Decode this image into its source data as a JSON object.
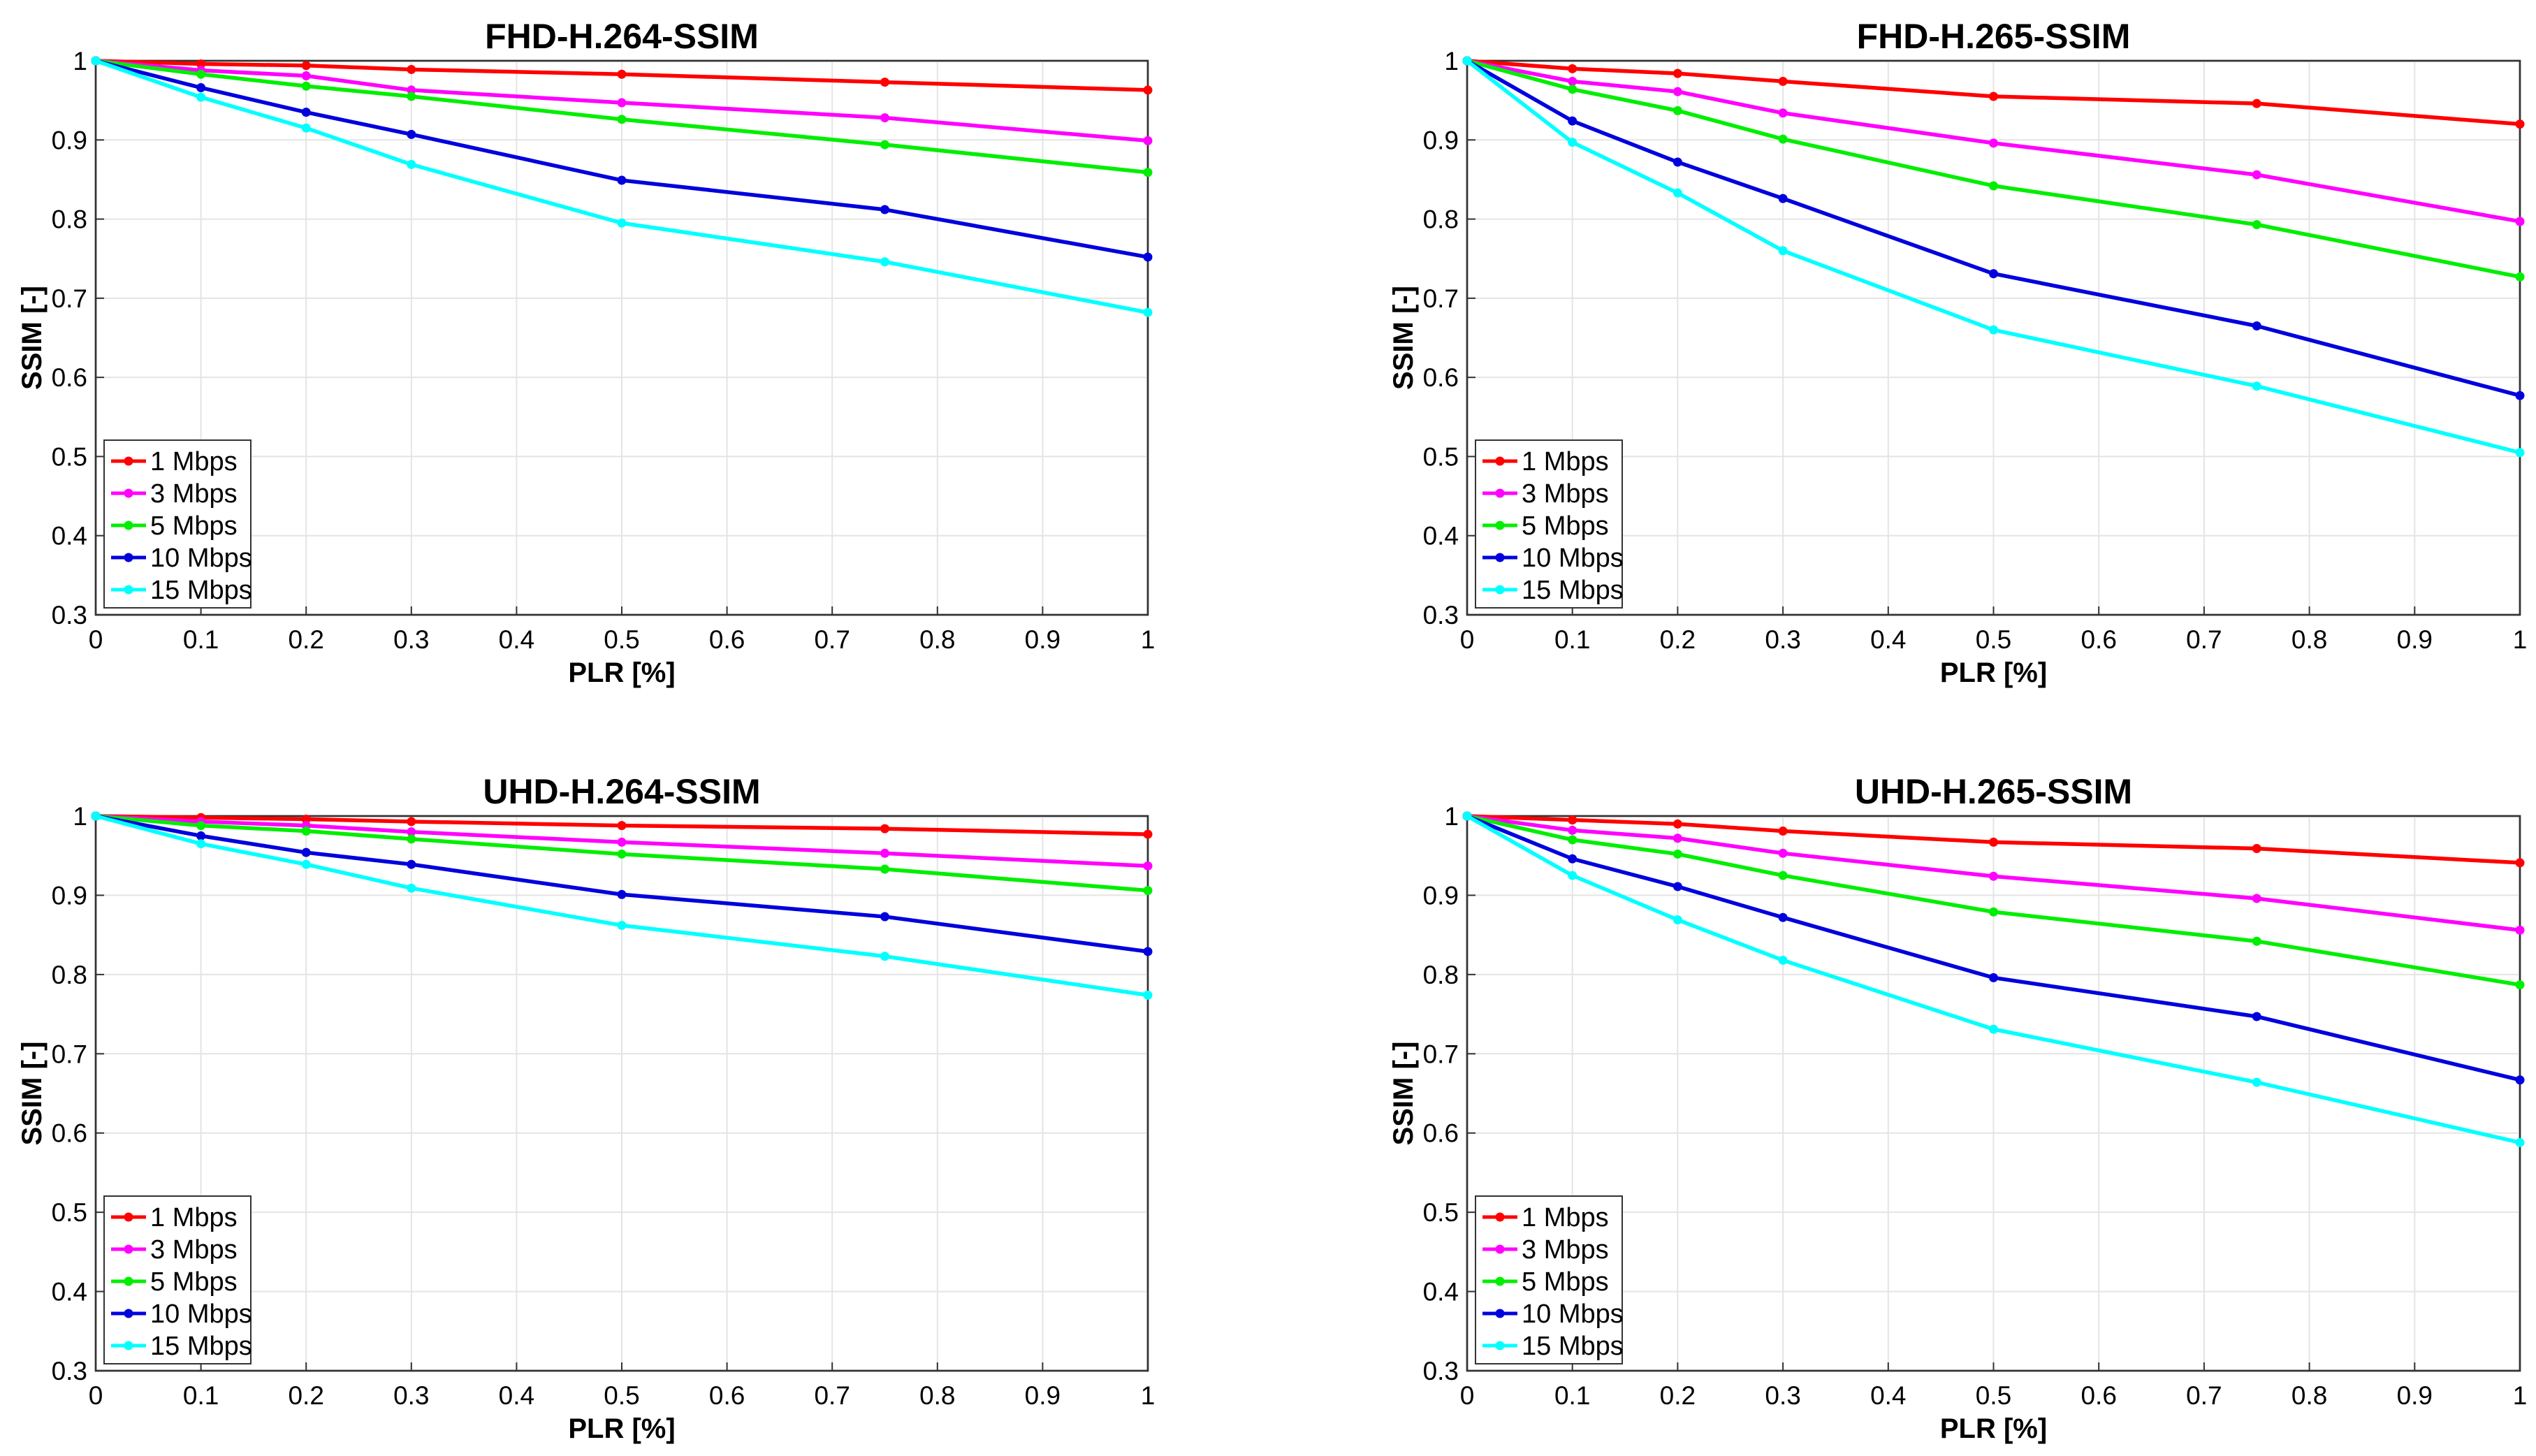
{
  "chart_data": [
    {
      "type": "line",
      "title": "FHD-H.264-SSIM",
      "xlabel": "PLR [%]",
      "ylabel": "SSIM [-]",
      "xlim": [
        0,
        1
      ],
      "ylim": [
        0.3,
        1
      ],
      "xticks": [
        "0",
        "0.1",
        "0.2",
        "0.3",
        "0.4",
        "0.5",
        "0.6",
        "0.7",
        "0.8",
        "0.9",
        "1"
      ],
      "yticks": [
        "0.3",
        "0.4",
        "0.5",
        "0.6",
        "0.7",
        "0.8",
        "0.9",
        "1"
      ],
      "grid": true,
      "legend_position": "bottom-left",
      "x": [
        0,
        0.1,
        0.2,
        0.3,
        0.5,
        0.75,
        1
      ],
      "series": [
        {
          "name": "1 Mbps",
          "color": "#ff0000",
          "values": [
            1,
            0.996,
            0.994,
            0.989,
            0.983,
            0.973,
            0.963
          ]
        },
        {
          "name": "3 Mbps",
          "color": "#ff00ff",
          "values": [
            1,
            0.988,
            0.981,
            0.963,
            0.947,
            0.928,
            0.899
          ]
        },
        {
          "name": "5 Mbps",
          "color": "#00ee00",
          "values": [
            1,
            0.983,
            0.968,
            0.955,
            0.926,
            0.894,
            0.859
          ]
        },
        {
          "name": "10 Mbps",
          "color": "#0000dd",
          "values": [
            1,
            0.966,
            0.935,
            0.907,
            0.849,
            0.812,
            0.752
          ]
        },
        {
          "name": "15 Mbps",
          "color": "#00ffff",
          "values": [
            1,
            0.954,
            0.915,
            0.869,
            0.795,
            0.746,
            0.682
          ]
        }
      ]
    },
    {
      "type": "line",
      "title": "FHD-H.265-SSIM",
      "xlabel": "PLR [%]",
      "ylabel": "SSIM [-]",
      "xlim": [
        0,
        1
      ],
      "ylim": [
        0.3,
        1
      ],
      "xticks": [
        "0",
        "0.1",
        "0.2",
        "0.3",
        "0.4",
        "0.5",
        "0.6",
        "0.7",
        "0.8",
        "0.9",
        "1"
      ],
      "yticks": [
        "0.3",
        "0.4",
        "0.5",
        "0.6",
        "0.7",
        "0.8",
        "0.9",
        "1"
      ],
      "grid": true,
      "legend_position": "bottom-left",
      "x": [
        0,
        0.1,
        0.2,
        0.3,
        0.5,
        0.75,
        1
      ],
      "series": [
        {
          "name": "1 Mbps",
          "color": "#ff0000",
          "values": [
            1,
            0.99,
            0.984,
            0.974,
            0.955,
            0.946,
            0.92
          ]
        },
        {
          "name": "3 Mbps",
          "color": "#ff00ff",
          "values": [
            1,
            0.974,
            0.961,
            0.934,
            0.896,
            0.856,
            0.797
          ]
        },
        {
          "name": "5 Mbps",
          "color": "#00ee00",
          "values": [
            1,
            0.964,
            0.937,
            0.901,
            0.842,
            0.793,
            0.727
          ]
        },
        {
          "name": "10 Mbps",
          "color": "#0000dd",
          "values": [
            1,
            0.924,
            0.872,
            0.826,
            0.731,
            0.665,
            0.577
          ]
        },
        {
          "name": "15 Mbps",
          "color": "#00ffff",
          "values": [
            1,
            0.897,
            0.833,
            0.76,
            0.66,
            0.589,
            0.505
          ]
        }
      ]
    },
    {
      "type": "line",
      "title": "UHD-H.264-SSIM",
      "xlabel": "PLR [%]",
      "ylabel": "SSIM [-]",
      "xlim": [
        0,
        1
      ],
      "ylim": [
        0.3,
        1
      ],
      "xticks": [
        "0",
        "0.1",
        "0.2",
        "0.3",
        "0.4",
        "0.5",
        "0.6",
        "0.7",
        "0.8",
        "0.9",
        "1"
      ],
      "yticks": [
        "0.3",
        "0.4",
        "0.5",
        "0.6",
        "0.7",
        "0.8",
        "0.9",
        "1"
      ],
      "grid": true,
      "legend_position": "bottom-left",
      "x": [
        0,
        0.1,
        0.2,
        0.3,
        0.5,
        0.75,
        1
      ],
      "series": [
        {
          "name": "1 Mbps",
          "color": "#ff0000",
          "values": [
            1,
            0.998,
            0.996,
            0.993,
            0.988,
            0.984,
            0.977
          ]
        },
        {
          "name": "3 Mbps",
          "color": "#ff00ff",
          "values": [
            1,
            0.993,
            0.988,
            0.98,
            0.967,
            0.953,
            0.937
          ]
        },
        {
          "name": "5 Mbps",
          "color": "#00ee00",
          "values": [
            1,
            0.988,
            0.981,
            0.971,
            0.952,
            0.933,
            0.906
          ]
        },
        {
          "name": "10 Mbps",
          "color": "#0000dd",
          "values": [
            1,
            0.975,
            0.954,
            0.939,
            0.901,
            0.873,
            0.829
          ]
        },
        {
          "name": "15 Mbps",
          "color": "#00ffff",
          "values": [
            1,
            0.965,
            0.939,
            0.909,
            0.862,
            0.823,
            0.774
          ]
        }
      ]
    },
    {
      "type": "line",
      "title": "UHD-H.265-SSIM",
      "xlabel": "PLR [%]",
      "ylabel": "SSIM [-]",
      "xlim": [
        0,
        1
      ],
      "ylim": [
        0.3,
        1
      ],
      "xticks": [
        "0",
        "0.1",
        "0.2",
        "0.3",
        "0.4",
        "0.5",
        "0.6",
        "0.7",
        "0.8",
        "0.9",
        "1"
      ],
      "yticks": [
        "0.3",
        "0.4",
        "0.5",
        "0.6",
        "0.7",
        "0.8",
        "0.9",
        "1"
      ],
      "grid": true,
      "legend_position": "bottom-left",
      "x": [
        0,
        0.1,
        0.2,
        0.3,
        0.5,
        0.75,
        1
      ],
      "series": [
        {
          "name": "1 Mbps",
          "color": "#ff0000",
          "values": [
            1,
            0.995,
            0.99,
            0.981,
            0.967,
            0.959,
            0.941
          ]
        },
        {
          "name": "3 Mbps",
          "color": "#ff00ff",
          "values": [
            1,
            0.982,
            0.972,
            0.953,
            0.924,
            0.896,
            0.856
          ]
        },
        {
          "name": "5 Mbps",
          "color": "#00ee00",
          "values": [
            1,
            0.97,
            0.952,
            0.925,
            0.879,
            0.842,
            0.787
          ]
        },
        {
          "name": "10 Mbps",
          "color": "#0000dd",
          "values": [
            1,
            0.946,
            0.911,
            0.872,
            0.796,
            0.747,
            0.667
          ]
        },
        {
          "name": "15 Mbps",
          "color": "#00ffff",
          "values": [
            1,
            0.925,
            0.869,
            0.818,
            0.731,
            0.664,
            0.588
          ]
        }
      ]
    }
  ]
}
